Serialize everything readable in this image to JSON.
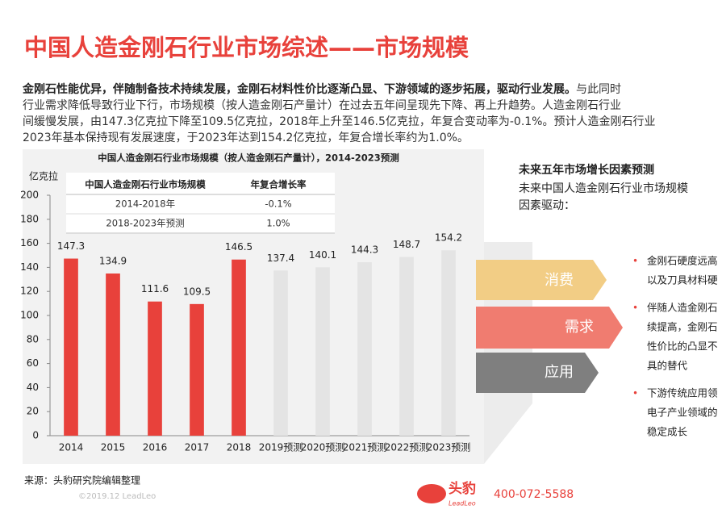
{
  "header": {
    "title": "中国人造金刚石行业市场综述——市场规模"
  },
  "paragraph": {
    "lead": "金刚石性能优异，伴随制备技术持续发展，金刚石材料性价比逐渐凸显、下游领域的逐步拓展，驱动行业发展。",
    "lines": [
      "与此同时",
      "行业需求降低导致行业下行，市场规模（按人造金刚石产量计）在过去五年间呈现先下降、再上升趋势。人造金刚石行业",
      "间缓慢发展，由147.3亿克拉下降至109.5亿克拉，2018年上升至146.5亿克拉，年复合变动率为-0.1%。预计人造金刚石行业",
      "2023年基本保持现有发展速度，于2023年达到154.2亿克拉，年复合增长率约为1.0%。"
    ]
  },
  "chart_data": {
    "type": "bar",
    "title": "中国人造金刚石行业市场规模（按人造金刚石产量计），2014-2023预测",
    "y_label": "亿克拉",
    "categories": [
      "2014",
      "2015",
      "2016",
      "2017",
      "2018",
      "2019预测",
      "2020预测",
      "2021预测",
      "2022预测",
      "2023预测"
    ],
    "values": [
      147.3,
      134.9,
      111.6,
      109.5,
      146.5,
      137.4,
      140.1,
      144.3,
      148.7,
      154.2
    ],
    "colors": [
      "#e8413b",
      "#e8413b",
      "#e8413b",
      "#e8413b",
      "#e8413b",
      "#e4e4e4",
      "#e4e4e4",
      "#e4e4e4",
      "#e4e4e4",
      "#e4e4e4"
    ],
    "ylim": [
      0,
      200
    ],
    "yticks": [
      0,
      20,
      40,
      60,
      80,
      100,
      120,
      140,
      160,
      180,
      200
    ]
  },
  "inset_table": {
    "header": [
      "中国人造金刚石行业市场规模",
      "年复合增长率"
    ],
    "rows": [
      [
        "2014-2018年",
        "-0.1%"
      ],
      [
        "2018-2023年预测",
        "1.0%"
      ]
    ]
  },
  "factors": {
    "title": "未来五年市场增长因素预测",
    "intro": [
      "未来中国人造金刚石行业市场规模",
      "因素驱动："
    ],
    "arrows": [
      "消费",
      "需求",
      "应用"
    ],
    "bullets": [
      [
        "金刚石硬度远高",
        "以及刀具材料硬"
      ],
      [
        "伴随人造金刚石",
        "续提高，金刚石",
        "性价比的凸显不",
        "具的替代"
      ],
      [
        "下游传统应用领",
        "电子产业领域的",
        "稳定成长"
      ]
    ]
  },
  "footer": {
    "source": "来源：头豹研究院编辑整理",
    "copyright": "©2019.12 LeadLeo",
    "logo": "头豹",
    "logo_sub": "LeadLeo",
    "phone": "400-072-5588"
  }
}
